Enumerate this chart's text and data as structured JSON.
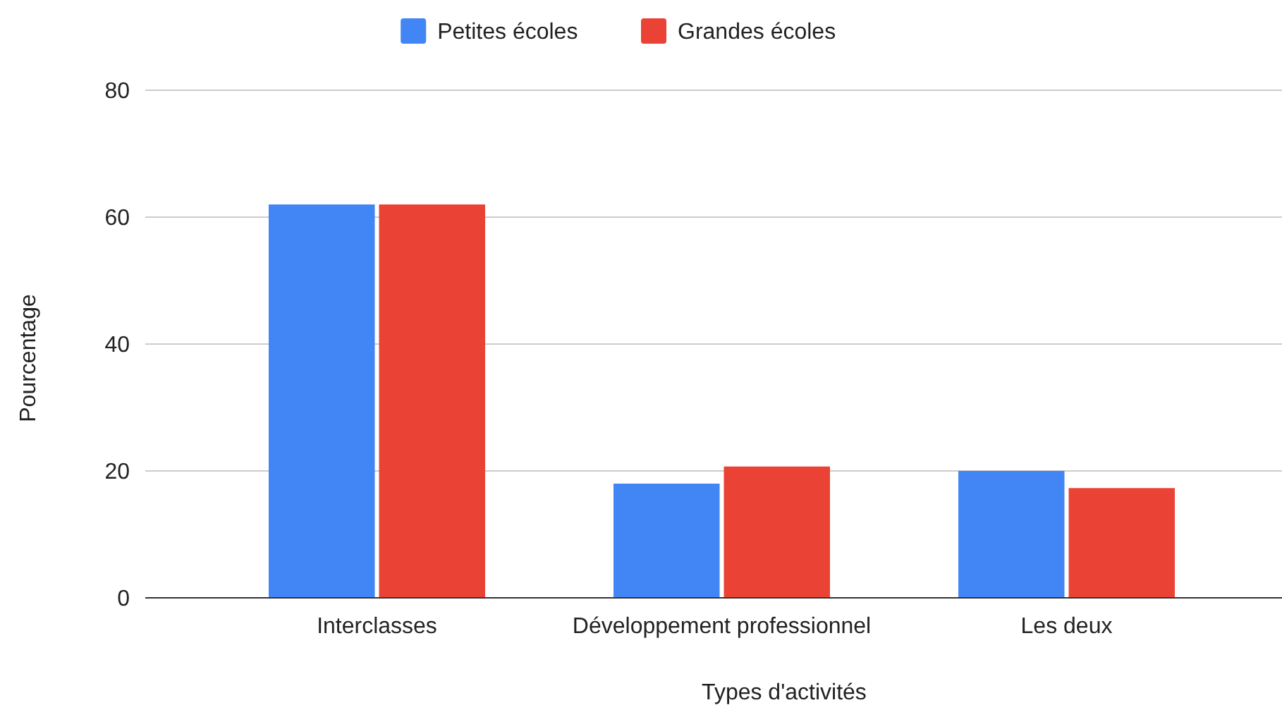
{
  "chart_data": {
    "type": "bar",
    "xlabel": "Types d'activités",
    "ylabel": "Pourcentage",
    "categories": [
      "Interclasses",
      "Développement professionnel",
      "Les deux"
    ],
    "series": [
      {
        "name": "Petites écoles",
        "color": "#4285f4",
        "values": [
          62,
          18,
          20
        ]
      },
      {
        "name": "Grandes écoles",
        "color": "#ea4335",
        "values": [
          62,
          20.7,
          17.3
        ]
      }
    ],
    "ylim": [
      0,
      80
    ],
    "yticks": [
      0,
      20,
      40,
      60,
      80
    ],
    "grid": "y",
    "legend": "top"
  }
}
